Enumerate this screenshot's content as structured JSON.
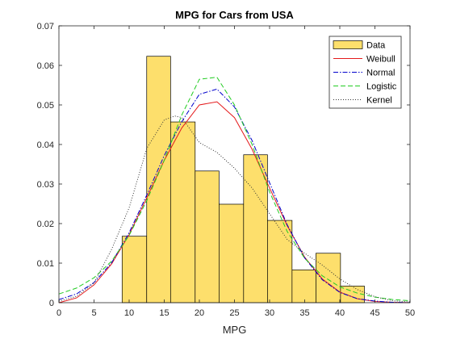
{
  "chart_data": {
    "type": "bar",
    "title": "MPG for Cars from USA",
    "xlabel": "MPG",
    "ylabel": "",
    "xlim": [
      0,
      50
    ],
    "ylim": [
      0,
      0.07
    ],
    "xticks": [
      "0",
      "5",
      "10",
      "15",
      "20",
      "25",
      "30",
      "35",
      "40",
      "45",
      "50"
    ],
    "yticks": [
      "0",
      "0.01",
      "0.02",
      "0.03",
      "0.04",
      "0.05",
      "0.06",
      "0.07"
    ],
    "grid": false,
    "legend_position": "top-right",
    "histogram": {
      "name": "Data",
      "color": "#FDDF6C",
      "bin_edges": [
        9,
        12.5,
        15.9,
        19.4,
        22.8,
        26.3,
        29.7,
        33.2,
        36.6,
        40.1,
        43.5
      ],
      "values": [
        0.0168,
        0.0623,
        0.0457,
        0.0333,
        0.0249,
        0.0374,
        0.0208,
        0.0083,
        0.0125,
        0.0042
      ]
    },
    "series": [
      {
        "name": "Weibull",
        "color": "#E41A1C",
        "style": "solid",
        "x": [
          0,
          2.5,
          5,
          7.5,
          10,
          12.5,
          15,
          17.5,
          20,
          22.5,
          25,
          27.5,
          30,
          32.5,
          35,
          37.5,
          40,
          42.5,
          45,
          47.5,
          50
        ],
        "y": [
          0,
          0.0012,
          0.0045,
          0.0098,
          0.0172,
          0.0265,
          0.036,
          0.0442,
          0.05,
          0.0508,
          0.0468,
          0.0388,
          0.029,
          0.0195,
          0.0115,
          0.006,
          0.0027,
          0.001,
          0.0003,
          0.0001,
          0
        ]
      },
      {
        "name": "Normal",
        "color": "#0000CC",
        "style": "dashdot",
        "x": [
          0,
          2.5,
          5,
          7.5,
          10,
          12.5,
          15,
          17.5,
          20,
          22.5,
          25,
          27.5,
          30,
          32.5,
          35,
          37.5,
          40,
          42.5,
          45,
          47.5,
          50
        ],
        "y": [
          0.0008,
          0.0022,
          0.0051,
          0.0101,
          0.0177,
          0.0272,
          0.0372,
          0.0458,
          0.0527,
          0.054,
          0.0495,
          0.041,
          0.0303,
          0.0197,
          0.0113,
          0.0058,
          0.0026,
          0.001,
          0.0004,
          0.0001,
          0
        ]
      },
      {
        "name": "Logistic",
        "color": "#22CC22",
        "style": "dashed",
        "x": [
          0,
          2.5,
          5,
          7.5,
          10,
          12.5,
          15,
          17.5,
          20,
          22.5,
          25,
          27.5,
          30,
          32.5,
          35,
          37.5,
          40,
          42.5,
          45,
          47.5,
          50
        ],
        "y": [
          0.0022,
          0.0037,
          0.0063,
          0.0105,
          0.017,
          0.0258,
          0.036,
          0.0475,
          0.0565,
          0.057,
          0.05,
          0.04,
          0.028,
          0.018,
          0.0112,
          0.0068,
          0.004,
          0.0024,
          0.0014,
          0.0008,
          0.0005
        ]
      },
      {
        "name": "Kernel",
        "color": "#333333",
        "style": "dotted",
        "x": [
          0,
          2.5,
          5,
          7.5,
          10,
          12.5,
          15,
          16.5,
          17.5,
          20,
          22.5,
          25,
          27.5,
          30,
          32.5,
          35,
          37.5,
          40,
          42.5,
          45,
          47.5,
          50
        ],
        "y": [
          0.0004,
          0.0016,
          0.005,
          0.0135,
          0.024,
          0.039,
          0.0462,
          0.0472,
          0.0468,
          0.0405,
          0.038,
          0.034,
          0.029,
          0.0225,
          0.016,
          0.0125,
          0.0095,
          0.006,
          0.0033,
          0.0015,
          0.0005,
          0.0002
        ]
      }
    ]
  }
}
